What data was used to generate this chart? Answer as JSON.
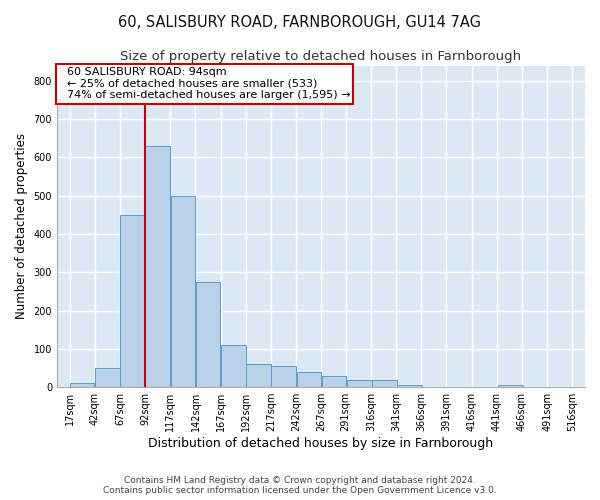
{
  "title_line1": "60, SALISBURY ROAD, FARNBOROUGH, GU14 7AG",
  "title_line2": "Size of property relative to detached houses in Farnborough",
  "xlabel": "Distribution of detached houses by size in Farnborough",
  "ylabel": "Number of detached properties",
  "footnote": "Contains HM Land Registry data © Crown copyright and database right 2024.\nContains public sector information licensed under the Open Government Licence v3.0.",
  "bar_centers": [
    29.5,
    54.5,
    79.5,
    104.5,
    129.5,
    154.5,
    179.5,
    204.5,
    229.5,
    254.5,
    279.5,
    304.5,
    329.5,
    354.5,
    379.5,
    404.5,
    429.5,
    454.5,
    479.5,
    504.5
  ],
  "bar_width": 24.5,
  "bar_heights": [
    10,
    50,
    450,
    630,
    500,
    275,
    110,
    60,
    55,
    40,
    30,
    18,
    18,
    5,
    0,
    0,
    0,
    5,
    0,
    0
  ],
  "bar_color": "#b8d0e8",
  "bar_edgecolor": "#5a9ec9",
  "x_tick_labels": [
    "17sqm",
    "42sqm",
    "67sqm",
    "92sqm",
    "117sqm",
    "142sqm",
    "167sqm",
    "192sqm",
    "217sqm",
    "242sqm",
    "267sqm",
    "291sqm",
    "316sqm",
    "341sqm",
    "366sqm",
    "391sqm",
    "416sqm",
    "441sqm",
    "466sqm",
    "491sqm",
    "516sqm"
  ],
  "x_tick_positions": [
    17,
    42,
    67,
    92,
    117,
    142,
    167,
    192,
    217,
    242,
    267,
    291,
    316,
    341,
    366,
    391,
    416,
    441,
    466,
    491,
    516
  ],
  "ylim": [
    0,
    840
  ],
  "xlim": [
    4.5,
    528.5
  ],
  "yticks": [
    0,
    100,
    200,
    300,
    400,
    500,
    600,
    700,
    800
  ],
  "red_line_x": 92,
  "annotation_text": "  60 SALISBURY ROAD: 94sqm\n  ← 25% of detached houses are smaller (533)\n  74% of semi-detached houses are larger (1,595) →",
  "annotation_box_facecolor": "#ffffff",
  "annotation_box_edgecolor": "#cc0000",
  "fig_facecolor": "#ffffff",
  "plot_bg_color": "#dce9f5",
  "grid_color": "#ffffff",
  "title_fontsize": 10.5,
  "subtitle_fontsize": 9.5,
  "annotation_fontsize": 8,
  "tick_fontsize": 7,
  "ylabel_fontsize": 8.5,
  "xlabel_fontsize": 9,
  "footnote_fontsize": 6.5
}
